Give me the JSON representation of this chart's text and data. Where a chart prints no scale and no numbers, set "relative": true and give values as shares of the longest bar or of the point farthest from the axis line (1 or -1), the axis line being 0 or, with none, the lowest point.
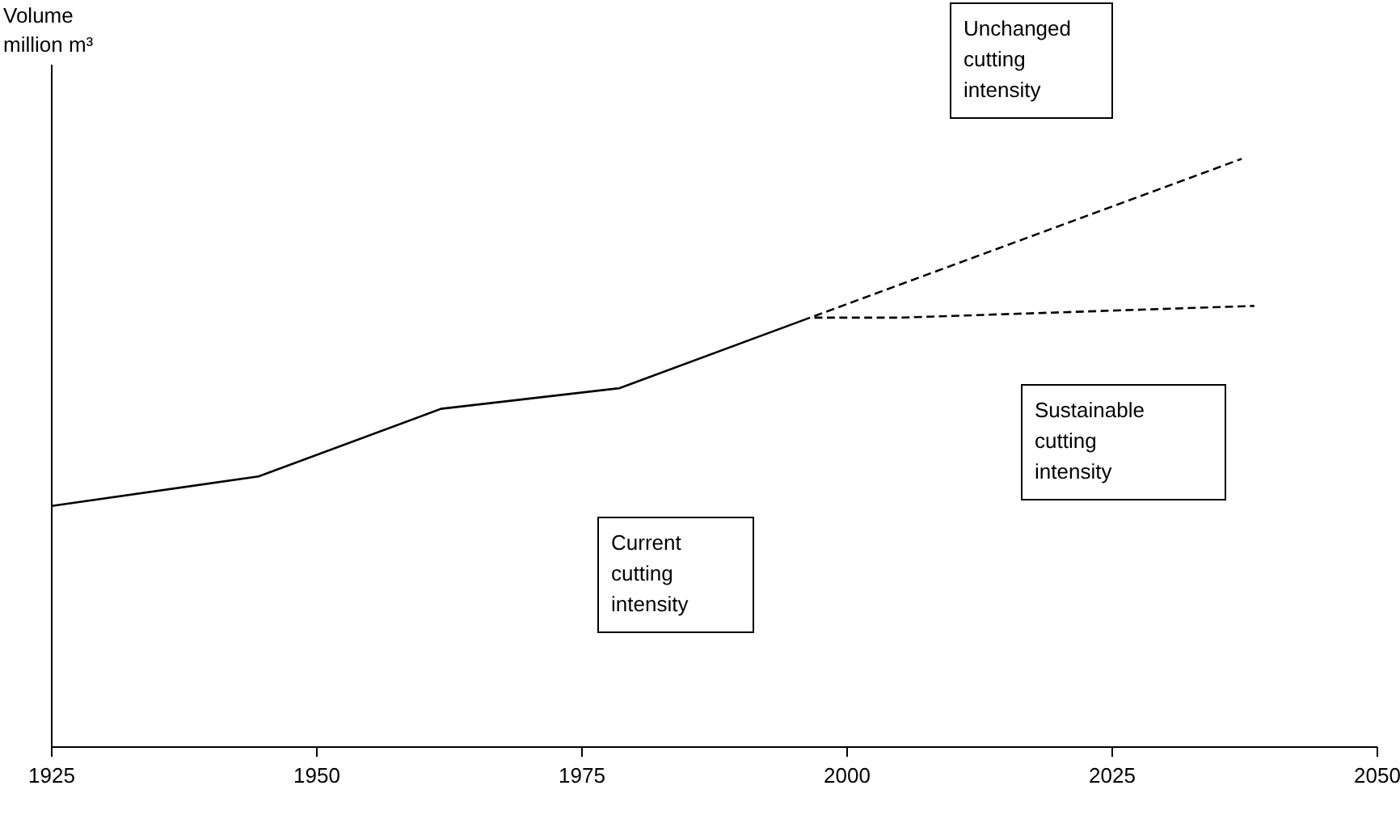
{
  "chart_data": {
    "type": "line",
    "relative": true,
    "ylabel": "Volume million m³",
    "xlim": [
      1925,
      2050
    ],
    "xticks": [
      1925,
      1950,
      1975,
      2000,
      2025,
      2050
    ],
    "tick_labels": "x",
    "marker": "none",
    "series": [
      {
        "color": "#000000",
        "line_style": "solid",
        "x": [
          1925,
          1944.5,
          1961.7,
          1978.5,
          1996.5
        ],
        "values": [
          0.41,
          0.46,
          0.575,
          0.61,
          0.73
        ]
      },
      {
        "color": "#000000",
        "line_style": "dashed",
        "x": [
          1996.5,
          2037.2
        ],
        "values": [
          0.73,
          1.0
        ]
      },
      {
        "color": "#000000",
        "line_style": "dashed",
        "x": [
          1996.5,
          2005,
          2038.4
        ],
        "values": [
          0.73,
          0.73,
          0.75
        ]
      }
    ],
    "annotations": [
      "Unchanged cutting intensity",
      "Sustainable cutting intensity",
      "Current cutting intensity"
    ]
  }
}
